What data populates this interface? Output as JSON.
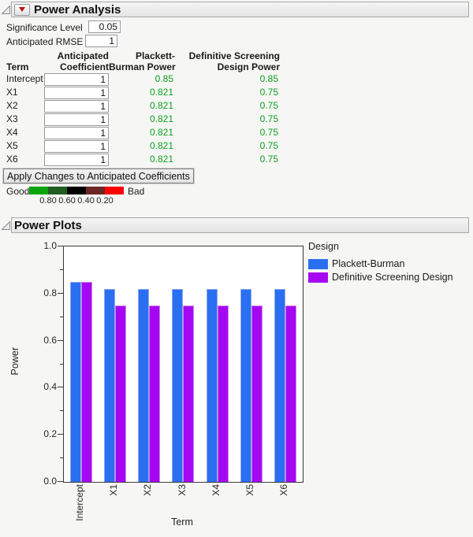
{
  "colors": {
    "power_good_text": "#10a11e",
    "pb_bar": "#2a6ff2",
    "pb_bar_edge": "#8fa8ef",
    "dsd_bar": "#a607f2",
    "dsd_bar_edge": "#d080ef",
    "red_triangle": "#c40f0f"
  },
  "power_analysis": {
    "title": "Power Analysis",
    "significance": {
      "label": "Significance Level",
      "value": "0.05"
    },
    "rmse": {
      "label": "Anticipated RMSE",
      "value": "1"
    },
    "table": {
      "headers": {
        "term": "Term",
        "coef": [
          "Anticipated",
          "Coefficient"
        ],
        "pb": [
          "Plackett-",
          "Burman Power"
        ],
        "dsd": [
          "Definitive Screening",
          "Design Power"
        ]
      },
      "rows": [
        {
          "term": "Intercept",
          "coef": "1",
          "pb": "0.85",
          "dsd": "0.85"
        },
        {
          "term": "X1",
          "coef": "1",
          "pb": "0.821",
          "dsd": "0.75"
        },
        {
          "term": "X2",
          "coef": "1",
          "pb": "0.821",
          "dsd": "0.75"
        },
        {
          "term": "X3",
          "coef": "1",
          "pb": "0.821",
          "dsd": "0.75"
        },
        {
          "term": "X4",
          "coef": "1",
          "pb": "0.821",
          "dsd": "0.75"
        },
        {
          "term": "X5",
          "coef": "1",
          "pb": "0.821",
          "dsd": "0.75"
        },
        {
          "term": "X6",
          "coef": "1",
          "pb": "0.821",
          "dsd": "0.75"
        }
      ]
    },
    "apply_button": "Apply Changes to Anticipated Coefficients",
    "colorbar": {
      "good": "Good",
      "bad": "Bad",
      "segments": [
        "#0aa40a",
        "#215e21",
        "#000000",
        "#6b2626",
        "#fb0202"
      ],
      "tick_labels": [
        "0.80",
        "0.60",
        "0.40",
        "0.20"
      ]
    }
  },
  "power_plots": {
    "title": "Power Plots"
  },
  "chart_data": {
    "type": "bar",
    "categories": [
      "Intercept",
      "X1",
      "X2",
      "X3",
      "X4",
      "X5",
      "X6"
    ],
    "series": [
      {
        "name": "Plackett-Burman",
        "color": "#2a6ff2",
        "edge": "#8fa8ef",
        "values": [
          0.85,
          0.821,
          0.821,
          0.821,
          0.821,
          0.821,
          0.821
        ]
      },
      {
        "name": "Definitive Screening Design",
        "color": "#a607f2",
        "edge": "#d080ef",
        "values": [
          0.85,
          0.75,
          0.75,
          0.75,
          0.75,
          0.75,
          0.75
        ]
      }
    ],
    "title": "",
    "xlabel": "Term",
    "ylabel": "Power",
    "ylim": [
      0,
      1.0
    ],
    "yticks": [
      0.0,
      0.2,
      0.4,
      0.6,
      0.8,
      1.0
    ],
    "minor_ticks": [
      0.1,
      0.3,
      0.5,
      0.7,
      0.9
    ],
    "grid": false,
    "legend_title": "Design",
    "legend_position": "right"
  }
}
